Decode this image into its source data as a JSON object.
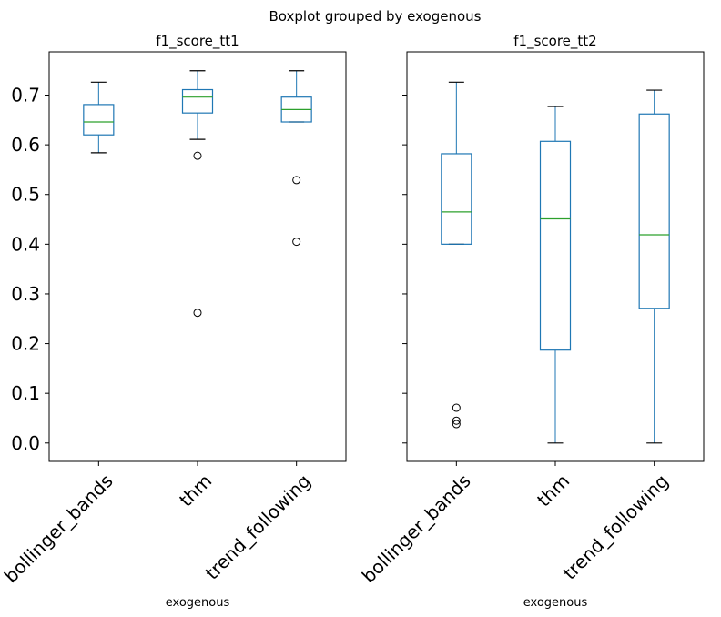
{
  "figure": {
    "suptitle": "Boxplot grouped by exogenous"
  },
  "chart_data": [
    {
      "type": "box",
      "title": "f1_score_tt1",
      "xlabel": "exogenous",
      "ylabel": "",
      "categories": [
        "bollinger_bands",
        "thm",
        "trend_following"
      ],
      "ylim": [
        -0.037,
        0.787
      ],
      "yticks": [
        0.0,
        0.1,
        0.2,
        0.3,
        0.4,
        0.5,
        0.6,
        0.7
      ],
      "ytick_labels": [
        "0.0",
        "0.1",
        "0.2",
        "0.3",
        "0.4",
        "0.5",
        "0.6",
        "0.7"
      ],
      "grid": false,
      "boxes": [
        {
          "category": "bollinger_bands",
          "whislo": 0.584,
          "q1": 0.62,
          "med": 0.646,
          "q3": 0.681,
          "whishi": 0.726,
          "fliers": []
        },
        {
          "category": "thm",
          "whislo": 0.611,
          "q1": 0.664,
          "med": 0.696,
          "q3": 0.711,
          "whishi": 0.749,
          "fliers": [
            0.578,
            0.262
          ]
        },
        {
          "category": "trend_following",
          "whislo": 0.646,
          "q1": 0.646,
          "med": 0.671,
          "q3": 0.696,
          "whishi": 0.749,
          "fliers": [
            0.529,
            0.405
          ]
        }
      ]
    },
    {
      "type": "box",
      "title": "f1_score_tt2",
      "xlabel": "exogenous",
      "ylabel": "",
      "categories": [
        "bollinger_bands",
        "thm",
        "trend_following"
      ],
      "ylim": [
        -0.037,
        0.787
      ],
      "grid": false,
      "sharey": true,
      "boxes": [
        {
          "category": "bollinger_bands",
          "whislo": 0.4,
          "q1": 0.4,
          "med": 0.465,
          "q3": 0.582,
          "whishi": 0.726,
          "fliers": [
            0.071,
            0.045,
            0.038
          ]
        },
        {
          "category": "thm",
          "whislo": 0.0,
          "q1": 0.187,
          "med": 0.451,
          "q3": 0.607,
          "whishi": 0.677,
          "fliers": []
        },
        {
          "category": "trend_following",
          "whislo": 0.0,
          "q1": 0.271,
          "med": 0.419,
          "q3": 0.662,
          "whishi": 0.71,
          "fliers": []
        }
      ]
    }
  ],
  "colors": {
    "box": "#1f77b4",
    "median": "#2ca02c",
    "whisker": "#000000",
    "flier": "#000000",
    "axes": "#000000"
  }
}
